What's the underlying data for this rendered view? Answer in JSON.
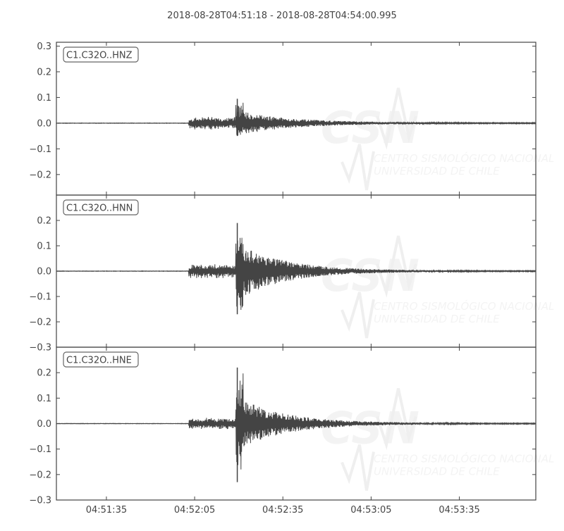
{
  "chart_data": {
    "type": "line",
    "title": "2018-08-28T04:51:18  -  2018-08-28T04:54:00.995",
    "xlabel": "",
    "ylabel": "",
    "x_range": [
      "04:51:18",
      "04:54:00.995"
    ],
    "x_ticks": [
      "04:51:35",
      "04:52:05",
      "04:52:35",
      "04:53:05",
      "04:53:35"
    ],
    "grid": false,
    "legend": "none",
    "trace_color": "#444444",
    "watermark": {
      "logo": "CSN",
      "line1": "CENTRO SISMOLÓGICO NACIONAL",
      "line2": "UNIVERSIDAD DE CHILE"
    },
    "panels": [
      {
        "label": "C1.C32O..HNZ",
        "ylim": [
          -0.28,
          0.315
        ],
        "y_ticks": [
          "0.3",
          "0.2",
          "0.1",
          "0.0",
          "−0.1",
          "−0.2"
        ],
        "y_tick_values": [
          0.3,
          0.2,
          0.1,
          0.0,
          -0.1,
          -0.2
        ],
        "p_onset_s": 45,
        "p_amplitude": 0.022,
        "s_onset_s": 61,
        "peak_max": 0.095,
        "peak_min": -0.05,
        "coda_amplitude": 0.04
      },
      {
        "label": "C1.C32O..HNN",
        "ylim": [
          -0.3,
          0.3
        ],
        "y_ticks": [
          "0.2",
          "0.1",
          "0.0",
          "−0.1",
          "−0.2",
          "−0.3"
        ],
        "y_tick_values": [
          0.2,
          0.1,
          0.0,
          -0.1,
          -0.2,
          -0.3
        ],
        "p_onset_s": 45,
        "p_amplitude": 0.025,
        "s_onset_s": 61,
        "peak_max": 0.19,
        "peak_min": -0.17,
        "coda_amplitude": 0.11
      },
      {
        "label": "C1.C32O..HNE",
        "ylim": [
          -0.3,
          0.3
        ],
        "y_ticks": [
          "0.2",
          "0.1",
          "0.0",
          "−0.1",
          "−0.2",
          "−0.3"
        ],
        "y_tick_values": [
          0.2,
          0.1,
          0.0,
          -0.1,
          -0.2,
          -0.3
        ],
        "p_onset_s": 45,
        "p_amplitude": 0.02,
        "s_onset_s": 61,
        "peak_max": 0.22,
        "peak_min": -0.23,
        "coda_amplitude": 0.1
      }
    ]
  }
}
